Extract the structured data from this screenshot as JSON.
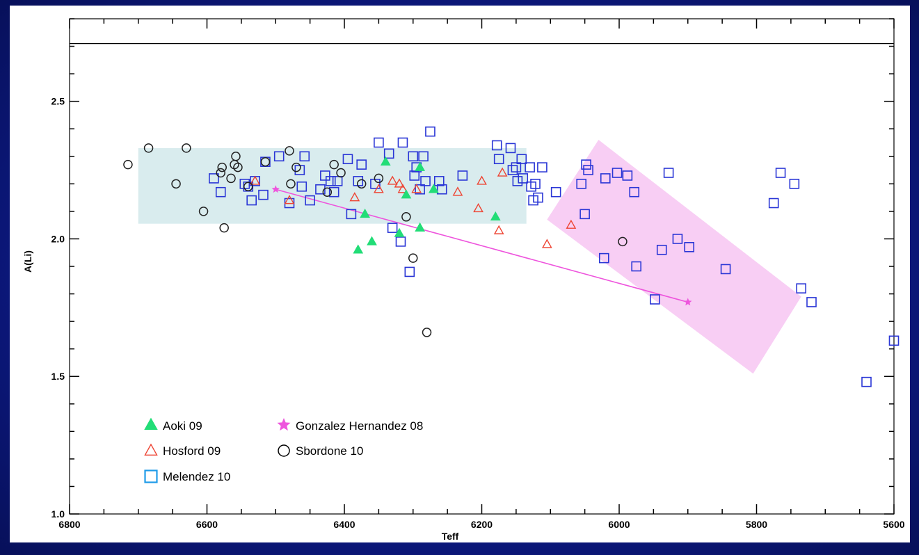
{
  "chart_data": {
    "type": "scatter",
    "title": "",
    "xlabel": "Teff",
    "ylabel": "A(Li)",
    "xlim": [
      6800,
      5600
    ],
    "ylim": [
      1.0,
      2.8
    ],
    "x_reversed": true,
    "xticks": [
      "6800",
      "6600",
      "6400",
      "6200",
      "6000",
      "5800",
      "5600"
    ],
    "yticks": [
      "1.0",
      "1.5",
      "2.0",
      "2.5"
    ],
    "reference_line_y": 2.71,
    "colors": {
      "aoki": "#22dd77",
      "hosford": "#ee4433",
      "sbordone": "#222222",
      "melendez": "#2a36d6",
      "melendez_legend": "#1f9be8",
      "gonzalez": "#ee55dd",
      "teal_box": "#d9ecee",
      "pink_box": "#f7c6f2"
    },
    "shaded_regions": [
      {
        "name": "teal-band",
        "x": [
          6700,
          6135
        ],
        "y": [
          2.055,
          2.33
        ]
      },
      {
        "name": "pink-band",
        "corners": [
          [
            6105,
            2.07
          ],
          [
            6030,
            2.36
          ],
          [
            5735,
            1.79
          ],
          [
            5805,
            1.51
          ]
        ]
      }
    ],
    "legend": {
      "placement": "bottom-left",
      "entries": [
        "Aoki 09",
        "Hosford 09",
        "Melendez 10",
        "Gonzalez Hernandez 08",
        "Sbordone 10"
      ]
    },
    "series": [
      {
        "name": "Aoki 09",
        "marker": "filled-triangle",
        "points": [
          [
            6340,
            2.28
          ],
          [
            6290,
            2.26
          ],
          [
            6370,
            2.09
          ],
          [
            6310,
            2.16
          ],
          [
            6270,
            2.18
          ],
          [
            6320,
            2.02
          ],
          [
            6290,
            2.04
          ],
          [
            6360,
            1.99
          ],
          [
            6380,
            1.96
          ],
          [
            6180,
            2.08
          ]
        ]
      },
      {
        "name": "Hosford 09",
        "marker": "open-triangle",
        "points": [
          [
            6530,
            2.21
          ],
          [
            6480,
            2.14
          ],
          [
            6385,
            2.15
          ],
          [
            6350,
            2.18
          ],
          [
            6330,
            2.21
          ],
          [
            6320,
            2.2
          ],
          [
            6315,
            2.18
          ],
          [
            6295,
            2.18
          ],
          [
            6235,
            2.17
          ],
          [
            6205,
            2.11
          ],
          [
            6200,
            2.21
          ],
          [
            6170,
            2.24
          ],
          [
            6175,
            2.03
          ],
          [
            6105,
            1.98
          ],
          [
            6070,
            2.05
          ]
        ]
      },
      {
        "name": "Sbordone 10",
        "marker": "open-circle",
        "points": [
          [
            6715,
            2.27
          ],
          [
            6685,
            2.33
          ],
          [
            6645,
            2.2
          ],
          [
            6630,
            2.33
          ],
          [
            6605,
            2.1
          ],
          [
            6580,
            2.24
          ],
          [
            6578,
            2.26
          ],
          [
            6575,
            2.04
          ],
          [
            6565,
            2.22
          ],
          [
            6560,
            2.27
          ],
          [
            6558,
            2.3
          ],
          [
            6555,
            2.26
          ],
          [
            6540,
            2.19
          ],
          [
            6515,
            2.28
          ],
          [
            6480,
            2.32
          ],
          [
            6478,
            2.2
          ],
          [
            6470,
            2.26
          ],
          [
            6425,
            2.17
          ],
          [
            6415,
            2.27
          ],
          [
            6405,
            2.24
          ],
          [
            6375,
            2.2
          ],
          [
            6350,
            2.22
          ],
          [
            6310,
            2.08
          ],
          [
            6300,
            1.93
          ],
          [
            6280,
            1.66
          ],
          [
            5995,
            1.99
          ]
        ]
      },
      {
        "name": "Melendez 10",
        "marker": "open-square",
        "points": [
          [
            6590,
            2.22
          ],
          [
            6580,
            2.17
          ],
          [
            6545,
            2.2
          ],
          [
            6540,
            2.19
          ],
          [
            6535,
            2.14
          ],
          [
            6530,
            2.21
          ],
          [
            6518,
            2.16
          ],
          [
            6515,
            2.28
          ],
          [
            6495,
            2.3
          ],
          [
            6480,
            2.13
          ],
          [
            6465,
            2.25
          ],
          [
            6462,
            2.19
          ],
          [
            6458,
            2.3
          ],
          [
            6450,
            2.14
          ],
          [
            6435,
            2.18
          ],
          [
            6428,
            2.23
          ],
          [
            6420,
            2.21
          ],
          [
            6410,
            2.21
          ],
          [
            6415,
            2.17
          ],
          [
            6395,
            2.29
          ],
          [
            6390,
            2.09
          ],
          [
            6380,
            2.21
          ],
          [
            6375,
            2.27
          ],
          [
            6355,
            2.2
          ],
          [
            6350,
            2.35
          ],
          [
            6335,
            2.31
          ],
          [
            6330,
            2.04
          ],
          [
            6318,
            1.99
          ],
          [
            6315,
            2.35
          ],
          [
            6305,
            1.88
          ],
          [
            6300,
            2.3
          ],
          [
            6298,
            2.23
          ],
          [
            6295,
            2.26
          ],
          [
            6290,
            2.18
          ],
          [
            6285,
            2.3
          ],
          [
            6282,
            2.21
          ],
          [
            6275,
            2.39
          ],
          [
            6262,
            2.21
          ],
          [
            6258,
            2.18
          ],
          [
            6228,
            2.23
          ],
          [
            6178,
            2.34
          ],
          [
            6175,
            2.29
          ],
          [
            6158,
            2.33
          ],
          [
            6155,
            2.25
          ],
          [
            6150,
            2.26
          ],
          [
            6148,
            2.21
          ],
          [
            6142,
            2.29
          ],
          [
            6140,
            2.22
          ],
          [
            6130,
            2.26
          ],
          [
            6128,
            2.19
          ],
          [
            6125,
            2.14
          ],
          [
            6122,
            2.2
          ],
          [
            6118,
            2.15
          ],
          [
            6112,
            2.26
          ],
          [
            6092,
            2.17
          ],
          [
            6048,
            2.27
          ],
          [
            6045,
            2.25
          ],
          [
            6050,
            2.09
          ],
          [
            6055,
            2.2
          ],
          [
            6022,
            1.93
          ],
          [
            6020,
            2.22
          ],
          [
            6003,
            2.24
          ],
          [
            5988,
            2.23
          ],
          [
            5978,
            2.17
          ],
          [
            5975,
            1.9
          ],
          [
            5948,
            1.78
          ],
          [
            5938,
            1.96
          ],
          [
            5928,
            2.24
          ],
          [
            5915,
            2.0
          ],
          [
            5898,
            1.97
          ],
          [
            5845,
            1.89
          ],
          [
            5775,
            2.13
          ],
          [
            5765,
            2.24
          ],
          [
            5745,
            2.2
          ],
          [
            5735,
            1.82
          ],
          [
            5720,
            1.77
          ],
          [
            5640,
            1.48
          ],
          [
            5600,
            1.63
          ]
        ]
      },
      {
        "name": "Gonzalez Hernandez 08",
        "marker": "star",
        "connected": true,
        "points": [
          [
            6500,
            2.18
          ],
          [
            5900,
            1.77
          ]
        ]
      }
    ]
  }
}
